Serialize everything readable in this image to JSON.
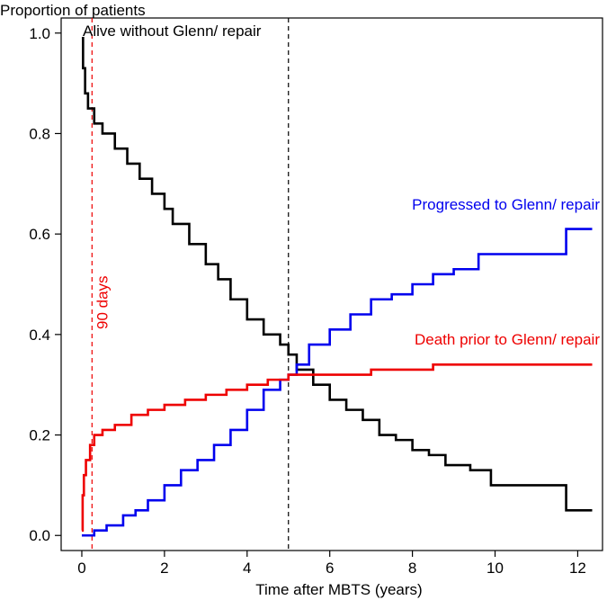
{
  "chart_data": {
    "type": "line",
    "title": "",
    "ylabel": "Proportion of patients",
    "xlabel": "Time after MBTS (years)",
    "xlim": [
      -0.5,
      12.6
    ],
    "ylim": [
      -0.03,
      1.03
    ],
    "x_ticks": [
      0,
      2,
      4,
      6,
      8,
      10,
      12
    ],
    "x_tick_labels": [
      "0",
      "2",
      "4",
      "6",
      "8",
      "10",
      "12"
    ],
    "y_ticks": [
      0.0,
      0.2,
      0.4,
      0.6,
      0.8,
      1.0
    ],
    "y_tick_labels": [
      "0.0",
      "0.2",
      "0.4",
      "0.6",
      "0.8",
      "1.0"
    ],
    "grid": false,
    "colors": {
      "alive": "#000000",
      "progressed": "#0000ee",
      "death": "#ee0000"
    },
    "reference_lines": [
      {
        "x": 0.247,
        "color": "#ee0000",
        "label": "90 days"
      },
      {
        "x": 5,
        "color": "#000000",
        "label": ""
      }
    ],
    "series": [
      {
        "key": "alive",
        "name": "Alive without Glenn/ repair",
        "x": [
          0,
          0.03,
          0.08,
          0.15,
          0.3,
          0.5,
          0.8,
          1.1,
          1.4,
          1.7,
          2.0,
          2.2,
          2.6,
          3.0,
          3.3,
          3.6,
          4.0,
          4.4,
          4.8,
          5.0,
          5.2,
          5.6,
          6.0,
          6.4,
          6.8,
          7.2,
          7.6,
          8.0,
          8.4,
          8.8,
          9.4,
          9.9,
          10.4,
          11.0,
          11.7,
          11.72,
          12.35
        ],
        "y": [
          0.99,
          0.93,
          0.88,
          0.85,
          0.82,
          0.8,
          0.77,
          0.74,
          0.71,
          0.68,
          0.65,
          0.62,
          0.58,
          0.54,
          0.51,
          0.47,
          0.43,
          0.4,
          0.38,
          0.36,
          0.33,
          0.3,
          0.27,
          0.25,
          0.23,
          0.2,
          0.19,
          0.17,
          0.16,
          0.14,
          0.13,
          0.1,
          0.1,
          0.1,
          0.1,
          0.05,
          0.05
        ]
      },
      {
        "key": "progressed",
        "name": "Progressed to Glenn/ repair",
        "x": [
          0,
          0.3,
          0.6,
          1.0,
          1.3,
          1.6,
          2.0,
          2.4,
          2.8,
          3.2,
          3.6,
          4.0,
          4.4,
          4.8,
          5.0,
          5.2,
          5.5,
          6.0,
          6.5,
          7.0,
          7.5,
          8.0,
          8.5,
          9.0,
          9.6,
          10.0,
          11.0,
          11.7,
          11.72,
          12.35
        ],
        "y": [
          0.0,
          0.01,
          0.02,
          0.04,
          0.05,
          0.07,
          0.1,
          0.13,
          0.15,
          0.18,
          0.21,
          0.25,
          0.29,
          0.31,
          0.32,
          0.34,
          0.38,
          0.41,
          0.44,
          0.47,
          0.48,
          0.5,
          0.52,
          0.53,
          0.56,
          0.56,
          0.56,
          0.56,
          0.61,
          0.61
        ]
      },
      {
        "key": "death",
        "name": "Death prior to Glenn/ repair",
        "x": [
          0,
          0.02,
          0.05,
          0.1,
          0.2,
          0.3,
          0.5,
          0.8,
          1.2,
          1.6,
          2.0,
          2.5,
          3.0,
          3.5,
          4.0,
          4.5,
          5.0,
          5.5,
          6.0,
          7.0,
          8.0,
          8.5,
          10.0,
          12.35
        ],
        "y": [
          0.01,
          0.08,
          0.12,
          0.15,
          0.18,
          0.2,
          0.21,
          0.22,
          0.24,
          0.25,
          0.26,
          0.27,
          0.28,
          0.29,
          0.3,
          0.31,
          0.32,
          0.32,
          0.32,
          0.33,
          0.33,
          0.34,
          0.34,
          0.34
        ]
      }
    ]
  }
}
